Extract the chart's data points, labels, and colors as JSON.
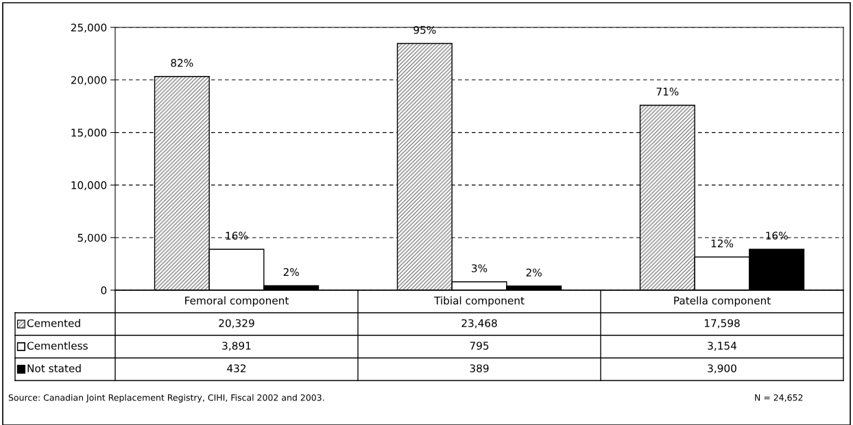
{
  "chart_data": {
    "type": "bar",
    "categories": [
      "Femoral component",
      "Tibial component",
      "Patella component"
    ],
    "series": [
      {
        "name": "Cemented",
        "color": "#808080",
        "values": [
          20329,
          23468,
          17598
        ],
        "value_labels": [
          "20,329",
          "23,468",
          "17,598"
        ]
      },
      {
        "name": "Cementless",
        "color": "#ffffff",
        "values": [
          3891,
          795,
          3154
        ],
        "value_labels": [
          "3,891",
          "795",
          "3,154"
        ]
      },
      {
        "name": "Not stated",
        "color": "#000000",
        "values": [
          432,
          389,
          3900
        ],
        "value_labels": [
          "432",
          "389",
          "3,900"
        ]
      }
    ],
    "ylim": [
      0,
      25000
    ],
    "yticks": [
      {
        "value": 0,
        "label": "0"
      },
      {
        "value": 5000,
        "label": "5,000"
      },
      {
        "value": 10000,
        "label": "10,000"
      },
      {
        "value": 15000,
        "label": "15,000"
      },
      {
        "value": 20000,
        "label": "20,000"
      },
      {
        "value": 25000,
        "label": "25,000"
      }
    ],
    "grid": "y",
    "legend": "bottom",
    "annotations": [
      "82%",
      "16%",
      "2%",
      "95%",
      "3%",
      "2%",
      "71%",
      "12%",
      "16%",
      "Source: Canadian Joint Replacement Registry, CIHI, Fiscal 2002 and 2003.",
      "N = 24,652"
    ]
  }
}
